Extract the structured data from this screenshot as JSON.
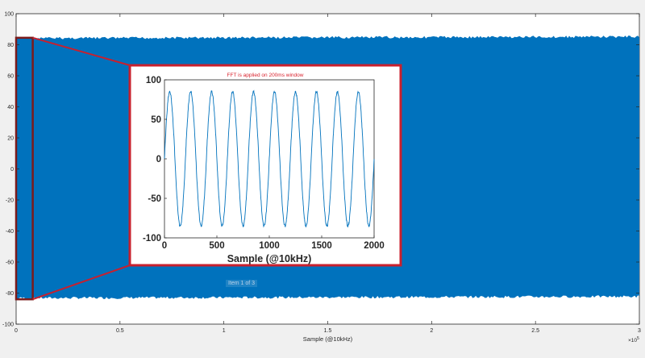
{
  "chart_data": [
    {
      "type": "area",
      "title": "",
      "xlabel": "Sample (@10kHz)",
      "ylabel": "",
      "xlim": [
        0,
        300000
      ],
      "ylim": [
        -100,
        100
      ],
      "x_ticks": [
        0,
        50000,
        100000,
        150000,
        200000,
        250000,
        300000
      ],
      "x_tick_labels": [
        "0",
        "0.5",
        "1",
        "1.5",
        "2",
        "2.5",
        "3"
      ],
      "x_exponent_label": "×10",
      "x_exponent_power": "5",
      "y_ticks": [
        -100,
        -80,
        -60,
        -40,
        -20,
        0,
        20,
        40,
        60,
        80,
        100
      ],
      "y_tick_labels": [
        "-100",
        "-80",
        "-60",
        "-40",
        "-20",
        "0",
        "20",
        "40",
        "60",
        "80",
        "100"
      ],
      "envelope": {
        "x_start": 0,
        "x_end": 300000,
        "upper": [
          85,
          86
        ],
        "lower": [
          -84,
          -83
        ]
      },
      "highlight_window": [
        0,
        8000
      ],
      "series_color": "#0072bd",
      "highlight_color": "#7b1b1b"
    },
    {
      "type": "line",
      "title": "FFT is applied on 200ms window",
      "xlabel": "Sample (@10kHz)",
      "ylabel": "",
      "xlim": [
        0,
        2000
      ],
      "ylim": [
        -100,
        100
      ],
      "x_ticks": [
        0,
        500,
        1000,
        1500,
        2000
      ],
      "x_tick_labels": [
        "0",
        "500",
        "1000",
        "1500",
        "2000"
      ],
      "y_ticks": [
        -100,
        -50,
        0,
        50,
        100
      ],
      "y_tick_labels": [
        "-100",
        "-50",
        "0",
        "50",
        "100"
      ],
      "signal": {
        "amplitude": 85,
        "cycles": 10,
        "samples": 2000,
        "start_phase_value": 0
      },
      "series_color": "#0072bd",
      "border_color": "#c8202e",
      "title_color": "#d9232e"
    }
  ],
  "overlay": {
    "label": "Item 1 of 3"
  }
}
